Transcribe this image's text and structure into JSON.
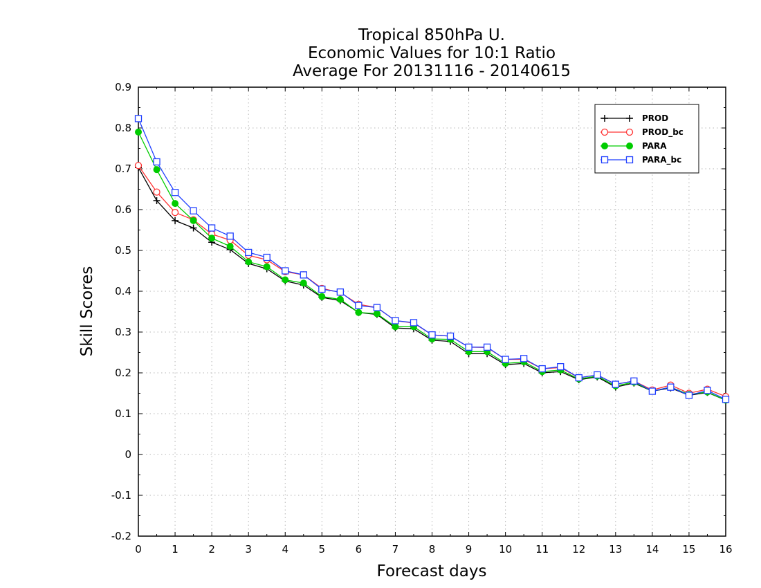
{
  "chart_data": {
    "type": "line",
    "title_lines": [
      "Tropical 850hPa U.",
      "Economic Values for 10:1 Ratio",
      "Average For 20131116 - 20140615"
    ],
    "xlabel": "Forecast days",
    "ylabel": "Skill Scores",
    "xlim": [
      0,
      16
    ],
    "ylim": [
      -0.2,
      0.9
    ],
    "x_ticks": [
      "0",
      "1",
      "2",
      "3",
      "4",
      "5",
      "6",
      "7",
      "8",
      "9",
      "10",
      "11",
      "12",
      "13",
      "14",
      "15",
      "16"
    ],
    "y_ticks": [
      "-0.2",
      "-0.1",
      "0",
      "0.1",
      "0.2",
      "0.3",
      "0.4",
      "0.5",
      "0.6",
      "0.7",
      "0.8",
      "0.9"
    ],
    "grid": true,
    "legend_position": "top-right",
    "x": [
      0,
      0.5,
      1,
      1.5,
      2,
      2.5,
      3,
      3.5,
      4,
      4.5,
      5,
      5.5,
      6,
      6.5,
      7,
      7.5,
      8,
      8.5,
      9,
      9.5,
      10,
      10.5,
      11,
      11.5,
      12,
      12.5,
      13,
      13.5,
      14,
      14.5,
      15,
      15.5,
      16
    ],
    "series": [
      {
        "name": "PROD",
        "color": "#000000",
        "marker": "plus",
        "values": [
          0.703,
          0.622,
          0.573,
          0.555,
          0.52,
          0.502,
          0.468,
          0.455,
          0.425,
          0.415,
          0.385,
          0.377,
          0.348,
          0.343,
          0.31,
          0.308,
          0.28,
          0.277,
          0.247,
          0.247,
          0.22,
          0.223,
          0.2,
          0.203,
          0.183,
          0.19,
          0.165,
          0.175,
          0.155,
          0.163,
          0.145,
          0.152,
          0.133
        ]
      },
      {
        "name": "PROD_bc",
        "color": "#ff3333",
        "marker": "open-circle",
        "values": [
          0.708,
          0.643,
          0.593,
          0.575,
          0.54,
          0.525,
          0.488,
          0.477,
          0.448,
          0.44,
          0.407,
          0.397,
          0.368,
          0.36,
          0.328,
          0.322,
          0.293,
          0.29,
          0.263,
          0.262,
          0.233,
          0.233,
          0.21,
          0.213,
          0.188,
          0.195,
          0.172,
          0.18,
          0.158,
          0.17,
          0.15,
          0.16,
          0.142
        ]
      },
      {
        "name": "PARA",
        "color": "#00cc00",
        "marker": "filled-circle",
        "values": [
          0.79,
          0.698,
          0.615,
          0.573,
          0.53,
          0.51,
          0.472,
          0.46,
          0.428,
          0.42,
          0.387,
          0.38,
          0.348,
          0.345,
          0.313,
          0.313,
          0.283,
          0.282,
          0.252,
          0.252,
          0.223,
          0.227,
          0.203,
          0.207,
          0.185,
          0.192,
          0.168,
          0.177,
          0.155,
          0.165,
          0.147,
          0.153,
          0.133
        ]
      },
      {
        "name": "PARA_bc",
        "color": "#1f3fff",
        "marker": "open-square",
        "values": [
          0.823,
          0.717,
          0.642,
          0.597,
          0.555,
          0.535,
          0.495,
          0.483,
          0.45,
          0.44,
          0.405,
          0.398,
          0.365,
          0.36,
          0.328,
          0.323,
          0.293,
          0.29,
          0.263,
          0.263,
          0.233,
          0.235,
          0.21,
          0.215,
          0.188,
          0.195,
          0.172,
          0.18,
          0.155,
          0.165,
          0.145,
          0.157,
          0.135
        ]
      }
    ]
  }
}
